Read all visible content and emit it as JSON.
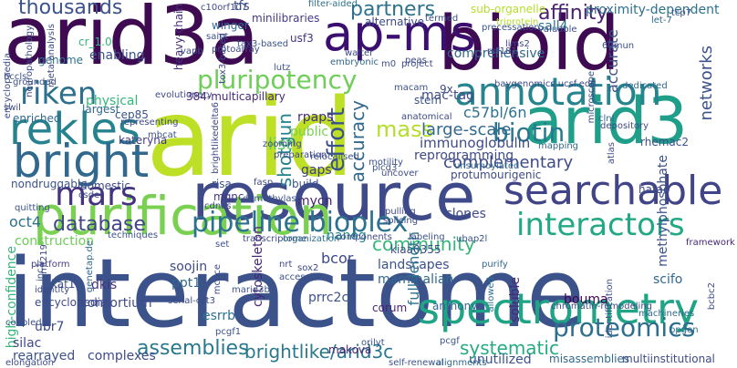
{
  "words": [
    {
      "text": "interactome",
      "color": "#3b528b"
    },
    {
      "text": "arid",
      "color": "#bddf26"
    },
    {
      "text": "arid3a",
      "color": "#3e0b52"
    },
    {
      "text": "bioid",
      "color": "#3e0b52"
    },
    {
      "text": "resource",
      "color": "#3e4a89"
    },
    {
      "text": "purification",
      "color": "#7ad151"
    },
    {
      "text": "spectrometry",
      "color": "#20a486"
    },
    {
      "text": "arid3",
      "color": "#1f9e89"
    },
    {
      "text": "annotation",
      "color": "#25848e"
    },
    {
      "text": "ap-ms",
      "color": "#3b0f70"
    },
    {
      "text": "searchable",
      "color": "#414487"
    },
    {
      "text": "rekles",
      "color": "#26828e"
    },
    {
      "text": "bright",
      "color": "#31688e"
    },
    {
      "text": "mars",
      "color": "#46337f"
    },
    {
      "text": "riken",
      "color": "#2d708e"
    },
    {
      "text": "pluripotency",
      "color": "#6ece58"
    },
    {
      "text": "pipeline bioplex",
      "color": "#2c728e"
    },
    {
      "text": "interactors",
      "color": "#22a884"
    },
    {
      "text": "biotin",
      "color": "#2a788e"
    },
    {
      "text": "thousands",
      "color": "#3b528b"
    },
    {
      "text": "partners",
      "color": "#2c728e"
    },
    {
      "text": "affinity",
      "color": "#481f70"
    },
    {
      "text": "proteomics",
      "color": "#2d708e"
    },
    {
      "text": "database",
      "color": "#414487"
    },
    {
      "text": "assemblies",
      "color": "#2a788e"
    },
    {
      "text": "community",
      "color": "#35b779"
    },
    {
      "text": "effort",
      "color": "#3b528b"
    },
    {
      "text": "accuracy",
      "color": "#31688e"
    },
    {
      "text": "mass",
      "color": "#b5de2b"
    },
    {
      "text": "complementary",
      "color": "#3e4a89"
    },
    {
      "text": "large-scale",
      "color": "#31688e"
    },
    {
      "text": "immunoglobulin",
      "color": "#3e4a89"
    },
    {
      "text": "brightlike/arid3c",
      "color": "#2a788e"
    },
    {
      "text": "systematic",
      "color": "#25ab82"
    },
    {
      "text": "shotgun",
      "color": "#26828e"
    },
    {
      "text": "list",
      "color": "#5ec962"
    },
    {
      "text": "gaps",
      "color": "#443983"
    },
    {
      "text": "reprogramming",
      "color": "#3e4a89"
    },
    {
      "text": "comprehensive",
      "color": "#31688e"
    },
    {
      "text": "c57bl/6n",
      "color": "#2c728e"
    },
    {
      "text": "physical",
      "color": "#35b779"
    },
    {
      "text": "enabling",
      "color": "#3b528b"
    },
    {
      "text": "mac-tag",
      "color": "#3e4a89"
    },
    {
      "text": "networks",
      "color": "#3b528b"
    },
    {
      "text": "accurate",
      "color": "#3b528b"
    },
    {
      "text": "sall4",
      "color": "#2c728e"
    },
    {
      "text": "proximity-dependent",
      "color": "#2c728e"
    },
    {
      "text": "minilibraries",
      "color": "#443983"
    },
    {
      "text": "tfs",
      "color": "#3b528b"
    },
    {
      "text": "usf3",
      "color": "#46337f"
    },
    {
      "text": "winger",
      "color": "#31688e"
    },
    {
      "text": "genome",
      "color": "#2c728e"
    },
    {
      "text": "cr_1.0",
      "color": "#35b779"
    },
    {
      "text": "heavy-chain",
      "color": "#472d7b"
    },
    {
      "text": "cep85",
      "color": "#3b528b"
    },
    {
      "text": "rpaps",
      "color": "#472d7b"
    },
    {
      "text": "kateryna",
      "color": "#443983"
    },
    {
      "text": "enriched",
      "color": "#31688e"
    },
    {
      "text": "oct4",
      "color": "#2c728e"
    },
    {
      "text": "mycn",
      "color": "#482475"
    },
    {
      "text": "domestic",
      "color": "#3e4a89"
    },
    {
      "text": "construction",
      "color": "#6ece58"
    },
    {
      "text": "methylphosphate",
      "color": "#3b528b"
    },
    {
      "text": "hatac",
      "color": "#3e4a89"
    },
    {
      "text": "soojin",
      "color": "#3e4a89"
    },
    {
      "text": "ppt1",
      "color": "#31688e"
    },
    {
      "text": "nanog",
      "color": "#26828e"
    },
    {
      "text": "bcor",
      "color": "#3e4a89"
    },
    {
      "text": "kiaa0355",
      "color": "#3e4a89"
    },
    {
      "text": "clones",
      "color": "#3e4a89"
    },
    {
      "text": "landscapes",
      "color": "#3b528b"
    },
    {
      "text": "mammalian",
      "color": "#31688e"
    },
    {
      "text": "full-length",
      "color": "#2c728e"
    },
    {
      "text": "cytoskeleton",
      "color": "#482878"
    },
    {
      "text": "high-confidence",
      "color": "#35b779"
    },
    {
      "text": "kat14",
      "color": "#3b528b"
    },
    {
      "text": "dkis",
      "color": "#46337f"
    },
    {
      "text": "encyclopedia",
      "color": "#3e4a89"
    },
    {
      "text": "consortium",
      "color": "#3e4a89"
    },
    {
      "text": "esrrb",
      "color": "#2c728e"
    },
    {
      "text": "prrc2c",
      "color": "#3b528b"
    },
    {
      "text": "corum",
      "color": "#482475"
    },
    {
      "text": "anthony",
      "color": "#31688e"
    },
    {
      "text": "bouma",
      "color": "#440154"
    },
    {
      "text": "soluble",
      "color": "#482878"
    },
    {
      "text": "scifo",
      "color": "#31688e"
    },
    {
      "text": "ubr7",
      "color": "#3e4a89"
    },
    {
      "text": "silac",
      "color": "#3e4a89"
    },
    {
      "text": "rearrayed",
      "color": "#3b528b"
    },
    {
      "text": "complexes",
      "color": "#3e4a89"
    },
    {
      "text": "makova",
      "color": "#482878"
    },
    {
      "text": "unutilized",
      "color": "#3b528b"
    },
    {
      "text": "misassemblies",
      "color": "#31688e"
    },
    {
      "text": "multiinstitutional",
      "color": "#3e4a89"
    },
    {
      "text": "machineries",
      "color": "#31688e"
    },
    {
      "text": "chromatin-remodeling",
      "color": "#3e4a89"
    },
    {
      "text": "identification",
      "color": "#3b528b"
    },
    {
      "text": "allowed",
      "color": "#2c728e"
    },
    {
      "text": "purify",
      "color": "#31688e"
    },
    {
      "text": "orilyt",
      "color": "#3b528b"
    },
    {
      "text": "pcgf1",
      "color": "#3b528b"
    },
    {
      "text": "stem",
      "color": "#3b528b"
    },
    {
      "text": "build",
      "color": "#3b528b"
    },
    {
      "text": "public",
      "color": "#7ad151"
    },
    {
      "text": "sub-organelle",
      "color": "#b5de2b"
    },
    {
      "text": "alternative",
      "color": "#3e4a89"
    },
    {
      "text": "triprotein",
      "color": "#b5de2b"
    },
    {
      "text": "filter-aided",
      "color": "#2c728e"
    },
    {
      "text": "mgnc",
      "color": "#443983"
    },
    {
      "text": "risa",
      "color": "#3b528b"
    },
    {
      "text": "9x",
      "color": "#3e4a89"
    },
    {
      "text": "largest",
      "color": "#31688e"
    },
    {
      "text": "384-multicapillary",
      "color": "#482878"
    },
    {
      "text": "evolutionary",
      "color": "#3e4a89"
    },
    {
      "text": "coupled",
      "color": "#3b528b"
    },
    {
      "text": "identity",
      "color": "#3e4a89"
    },
    {
      "text": "platform",
      "color": "#443983"
    },
    {
      "text": "brightlikedelta6",
      "color": "#3e4a89"
    },
    {
      "text": "uncover",
      "color": "#3e4a89"
    },
    {
      "text": "demethylase",
      "color": "#3b528b"
    },
    {
      "text": "fasp",
      "color": "#3e4a89"
    },
    {
      "text": "rhemac2",
      "color": "#3b528b"
    },
    {
      "text": "atlas",
      "color": "#3e4a89"
    },
    {
      "text": "clnl",
      "color": "#31688e"
    },
    {
      "text": "depository",
      "color": "#3e4a89"
    },
    {
      "text": "nondruggable",
      "color": "#3b528b"
    },
    {
      "text": "protumourigenic",
      "color": "#3e4a89"
    },
    {
      "text": "unsumoylated",
      "color": "#31688e"
    },
    {
      "text": "mapping",
      "color": "#31688e"
    },
    {
      "text": "self-renewal",
      "color": "#3b528b"
    },
    {
      "text": "alignments",
      "color": "#31688e"
    },
    {
      "text": "framework",
      "color": "#482878"
    },
    {
      "text": "labeling",
      "color": "#3b528b"
    },
    {
      "text": "ubap2l",
      "color": "#3b528b"
    },
    {
      "text": "components",
      "color": "#3e4a89"
    },
    {
      "text": "transcriptome",
      "color": "#3e4a89"
    },
    {
      "text": "organization",
      "color": "#2c728e"
    },
    {
      "text": "set",
      "color": "#3b528b"
    },
    {
      "text": "techniques",
      "color": "#3b528b"
    },
    {
      "text": "nrt",
      "color": "#3e4a89"
    },
    {
      "text": "accessible",
      "color": "#3b528b"
    },
    {
      "text": "sox2",
      "color": "#3e4a89"
    },
    {
      "text": "marid3b",
      "color": "#3b528b"
    },
    {
      "text": "inc1",
      "color": "#3b528b"
    },
    {
      "text": "genetap.de",
      "color": "#31688e"
    },
    {
      "text": "rnf219",
      "color": "#3e4a89"
    },
    {
      "text": "elongation",
      "color": "#3e4a89"
    },
    {
      "text": "bpgen",
      "color": "#31688e"
    },
    {
      "text": "encyclopaedia",
      "color": "#3e4a89"
    },
    {
      "text": "saint",
      "color": "#3b528b"
    },
    {
      "text": "c10orf107",
      "color": "#3e4a89"
    },
    {
      "text": "termed",
      "color": "#3b528b"
    },
    {
      "text": "precessation",
      "color": "#3b528b"
    },
    {
      "text": "lims2",
      "color": "#3e4a89"
    },
    {
      "text": "rnf181",
      "color": "#3e4a89"
    },
    {
      "text": "walter",
      "color": "#3e4a89"
    },
    {
      "text": "m0",
      "color": "#3b528b"
    },
    {
      "text": "project",
      "color": "#3e4a89"
    },
    {
      "text": "protoarray",
      "color": "#3e4a89"
    },
    {
      "text": "embryonic",
      "color": "#31688e"
    },
    {
      "text": "lutz",
      "color": "#3b528b"
    },
    {
      "text": "valuable",
      "color": "#3e4a89"
    },
    {
      "text": "let-7",
      "color": "#31688e"
    },
    {
      "text": "tcp7",
      "color": "#3b528b"
    },
    {
      "text": "60mun",
      "color": "#3b528b"
    },
    {
      "text": "microscope",
      "color": "#3e4a89"
    },
    {
      "text": "baygenomics ucsf.edu",
      "color": "#3e4a89"
    },
    {
      "text": "dedicated",
      "color": "#31688e"
    },
    {
      "text": "grounded",
      "color": "#3b528b"
    },
    {
      "text": "bccls",
      "color": "#3b528b"
    },
    {
      "text": "swil",
      "color": "#3e4a89"
    },
    {
      "text": "representing",
      "color": "#3e4a89"
    },
    {
      "text": "zooming",
      "color": "#3e4a89"
    },
    {
      "text": "relocalised",
      "color": "#3b528b"
    },
    {
      "text": "preparation",
      "color": "#3e4a89"
    },
    {
      "text": "motility",
      "color": "#3b528b"
    },
    {
      "text": "plcd3",
      "color": "#3b528b"
    },
    {
      "text": "csdel",
      "color": "#3e4a89"
    },
    {
      "text": "quitting",
      "color": "#3b528b"
    },
    {
      "text": "cdnas",
      "color": "#3e4a89"
    },
    {
      "text": "pulling",
      "color": "#3e4a89"
    },
    {
      "text": "splicing",
      "color": "#3e4a89"
    },
    {
      "text": "meta-analysis",
      "color": "#3e4a89"
    },
    {
      "text": "mbcat",
      "color": "#3b528b"
    },
    {
      "text": "vapb",
      "color": "#3e4a89"
    },
    {
      "text": "anatomical",
      "color": "#3e4a89"
    },
    {
      "text": "macam",
      "color": "#3b528b"
    },
    {
      "text": "neuropathology",
      "color": "#3e4a89"
    },
    {
      "text": "serial-cct3",
      "color": "#3e4a89"
    },
    {
      "text": "mcpce",
      "color": "#3e4a89"
    },
    {
      "text": "peas",
      "color": "#3e4a89"
    },
    {
      "text": "pcgf",
      "color": "#3b528b"
    },
    {
      "text": "bcbc2",
      "color": "#3e4a89"
    },
    {
      "text": "tox3-based",
      "color": "#3e4a89"
    },
    {
      "text": "tax3-based",
      "color": "#3b528b"
    }
  ]
}
